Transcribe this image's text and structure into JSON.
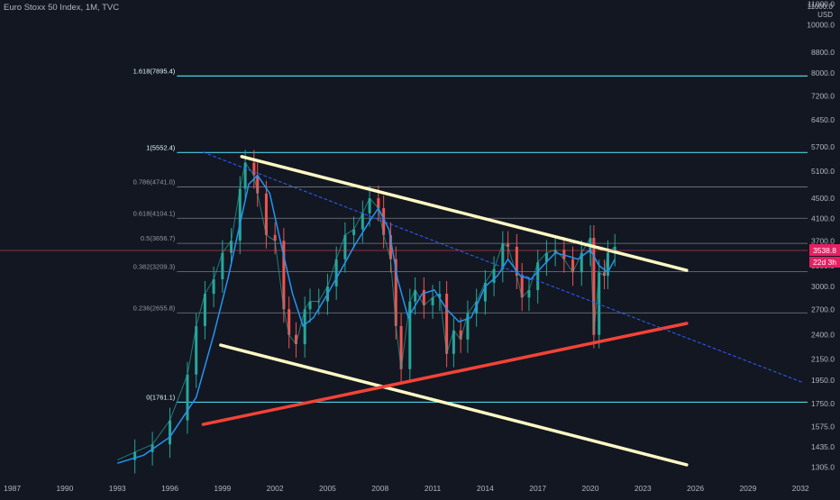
{
  "header": {
    "symbol_line": "Euro Stoxx 50 Index, 1M, TVC"
  },
  "axis": {
    "unit_top": "11000.0",
    "currency": "USD"
  },
  "chart_data": {
    "type": "line",
    "title": "Euro Stoxx 50 Index, 1M, TVC",
    "xlabel": "",
    "ylabel": "",
    "yscale": "log",
    "ylim": [
      1220,
      11200
    ],
    "xlim": [
      1986.3,
      2032.4
    ],
    "x_ticks": [
      "1987",
      "1990",
      "1993",
      "1996",
      "1999",
      "2002",
      "2005",
      "2008",
      "2011",
      "2014",
      "2017",
      "2020",
      "2023",
      "2026",
      "2029",
      "2032"
    ],
    "y_ticks": [
      "11000.0",
      "10000.0",
      "8800.0",
      "8000.0",
      "7200.0",
      "6450.0",
      "5700.0",
      "5100.0",
      "4500.0",
      "4100.0",
      "3700.0",
      "3300.0",
      "3000.0",
      "2700.0",
      "2400.0",
      "2150.0",
      "1950.0",
      "1750.0",
      "1575.0",
      "1435.0",
      "1305.0"
    ],
    "last_price": {
      "value": "3538.8",
      "countdown": "22d 3h"
    },
    "fib_levels": [
      {
        "label": "1.618(7895.4)",
        "value": 7895.4,
        "color": "#4dd0e1"
      },
      {
        "label": "1(5552.4)",
        "value": 5552.4,
        "color": "#4dd0e1"
      },
      {
        "label": "0.786(4741.0)",
        "value": 4741.0,
        "color": "#787b86"
      },
      {
        "label": "0.618(4104.1)",
        "value": 4104.1,
        "color": "#787b86"
      },
      {
        "label": "0.5(3656.7)",
        "value": 3656.7,
        "color": "#787b86"
      },
      {
        "label": "0.382(3209.3)",
        "value": 3209.3,
        "color": "#787b86"
      },
      {
        "label": "0.236(2655.8)",
        "value": 2655.8,
        "color": "#787b86"
      },
      {
        "label": "0(1761.1)",
        "value": 1761.1,
        "color": "#4dd0e1"
      }
    ],
    "trendlines": [
      {
        "name": "upper-resistance",
        "color": "#fff9c4",
        "from": [
          2000.1,
          5450
        ],
        "to": [
          2025.5,
          3230
        ]
      },
      {
        "name": "lower-channel",
        "color": "#fff9c4",
        "from": [
          1998.9,
          2290
        ],
        "to": [
          2025.5,
          1320
        ]
      },
      {
        "name": "rising-support",
        "color": "#f44336",
        "from": [
          1997.9,
          1590
        ],
        "to": [
          2025.5,
          2530
        ]
      },
      {
        "name": "dotted-trend",
        "color": "#2962ff",
        "from": [
          1997.9,
          5560
        ],
        "to": [
          2032.1,
          1930
        ]
      }
    ],
    "series": [
      {
        "type": "price",
        "x": [
          1993.0,
          1994.0,
          1995.0,
          1996.0,
          1997.0,
          1997.5,
          1998.0,
          1998.5,
          1999.0,
          1999.5,
          2000.0,
          2000.3,
          2000.8,
          2001.0,
          2001.5,
          2002.0,
          2002.5,
          2002.8,
          2003.2,
          2003.7,
          2004.0,
          2004.5,
          2005.0,
          2005.5,
          2006.0,
          2006.5,
          2007.0,
          2007.4,
          2007.9,
          2008.2,
          2008.6,
          2008.9,
          2009.2,
          2009.7,
          2010.0,
          2010.5,
          2011.0,
          2011.4,
          2011.8,
          2012.2,
          2012.6,
          2013.0,
          2013.5,
          2014.0,
          2014.5,
          2015.0,
          2015.3,
          2015.8,
          2016.1,
          2016.5,
          2017.0,
          2017.5,
          2018.0,
          2018.5,
          2019.0,
          2019.5,
          2020.0,
          2020.2,
          2020.5,
          2020.8,
          2021.0,
          2021.4
        ],
        "values": [
          1350,
          1400,
          1450,
          1620,
          2000,
          2500,
          2900,
          3100,
          3500,
          3700,
          4700,
          5300,
          5000,
          4600,
          3800,
          3700,
          2700,
          2400,
          2300,
          2700,
          2800,
          2800,
          3000,
          3400,
          3800,
          3900,
          4200,
          4500,
          4300,
          3800,
          3400,
          2500,
          2050,
          2800,
          2950,
          2750,
          2850,
          2900,
          2200,
          2450,
          2350,
          2650,
          2800,
          3050,
          3250,
          3650,
          3600,
          3150,
          2850,
          2950,
          3350,
          3500,
          3550,
          3400,
          3200,
          3500,
          3750,
          2400,
          3200,
          3150,
          3500,
          3600
        ]
      },
      {
        "type": "moving-average",
        "x": [
          1993.0,
          1994.5,
          1996.0,
          1997.5,
          1998.5,
          1999.3,
          2000.0,
          2000.5,
          2001.0,
          2001.7,
          2002.3,
          2003.0,
          2003.6,
          2004.2,
          2005.0,
          2005.8,
          2006.5,
          2007.3,
          2007.9,
          2008.5,
          2009.0,
          2009.6,
          2010.4,
          2011.1,
          2011.8,
          2012.5,
          2013.2,
          2014.0,
          2014.7,
          2015.3,
          2016.0,
          2016.6,
          2017.3,
          2018.0,
          2018.7,
          2019.3,
          2020.0,
          2020.5,
          2021.0,
          2021.4
        ],
        "values": [
          1330,
          1380,
          1500,
          1800,
          2400,
          3100,
          4000,
          4800,
          5000,
          4600,
          3700,
          2900,
          2500,
          2600,
          2900,
          3250,
          3600,
          4000,
          4300,
          3900,
          3100,
          2600,
          2900,
          2950,
          2700,
          2550,
          2600,
          3000,
          3150,
          3400,
          3150,
          3100,
          3300,
          3500,
          3450,
          3400,
          3550,
          3300,
          3200,
          3400
        ]
      }
    ]
  }
}
